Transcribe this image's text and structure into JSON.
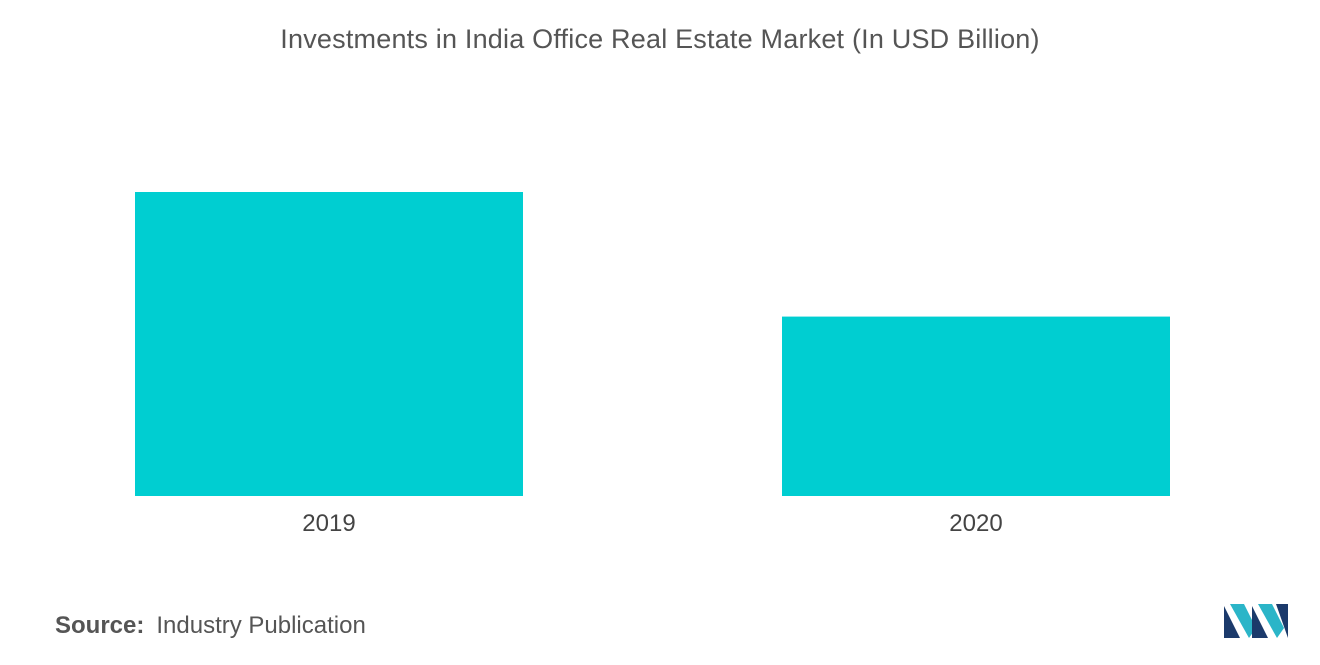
{
  "chart_data": {
    "type": "bar",
    "title": "Investments in India Office Real Estate Market (In USD Billion)",
    "categories": [
      "2019",
      "2020"
    ],
    "values": [
      6.1,
      3.6
    ],
    "ylim": [
      0,
      6.1
    ],
    "xlabel": "",
    "ylabel": "",
    "grid": false,
    "colors": {
      "bar": "#00CED1"
    }
  },
  "source": {
    "label": "Source:",
    "text": "Industry Publication"
  },
  "logo": {
    "icon": "mordor-intelligence-logo",
    "colors": [
      "#1B3A6B",
      "#2BB5C8"
    ]
  }
}
